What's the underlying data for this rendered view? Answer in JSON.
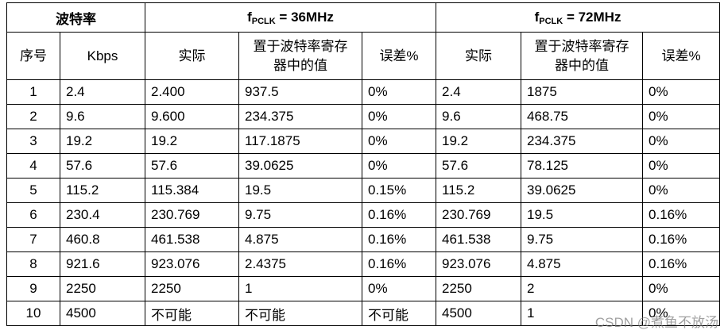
{
  "table": {
    "group_headers": [
      {
        "text": "波特率"
      },
      {
        "f": "f",
        "sub": "PCLK",
        "rest": " = 36MHz"
      },
      {
        "f": "f",
        "sub": "PCLK",
        "rest": " = 72MHz"
      }
    ],
    "columns": [
      "序号",
      "Kbps",
      "实际",
      "置于波特率寄存器中的值",
      "误差%",
      "实际",
      "置于波特率寄存器中的值",
      "误差%"
    ],
    "rows": [
      [
        "1",
        "2.4",
        "2.400",
        "937.5",
        "0%",
        "2.4",
        "1875",
        "0%"
      ],
      [
        "2",
        "9.6",
        "9.600",
        "234.375",
        "0%",
        "9.6",
        "468.75",
        "0%"
      ],
      [
        "3",
        "19.2",
        "19.2",
        "117.1875",
        "0%",
        "19.2",
        "234.375",
        "0%"
      ],
      [
        "4",
        "57.6",
        "57.6",
        "39.0625",
        "0%",
        "57.6",
        "78.125",
        "0%"
      ],
      [
        "5",
        "115.2",
        "115.384",
        "19.5",
        "0.15%",
        "115.2",
        "39.0625",
        "0%"
      ],
      [
        "6",
        "230.4",
        "230.769",
        "9.75",
        "0.16%",
        "230.769",
        "19.5",
        "0.16%"
      ],
      [
        "7",
        "460.8",
        "461.538",
        "4.875",
        "0.16%",
        "461.538",
        "9.75",
        "0.16%"
      ],
      [
        "8",
        "921.6",
        "923.076",
        "2.4375",
        "0.16%",
        "923.076",
        "4.875",
        "0.16%"
      ],
      [
        "9",
        "2250",
        "2250",
        "1",
        "0%",
        "2250",
        "2",
        "0%"
      ],
      [
        "10",
        "4500",
        "不可能",
        "不可能",
        "不可能",
        "4500",
        "1",
        "0%"
      ]
    ]
  },
  "watermark": "CSDN @煮鱼不放汤"
}
